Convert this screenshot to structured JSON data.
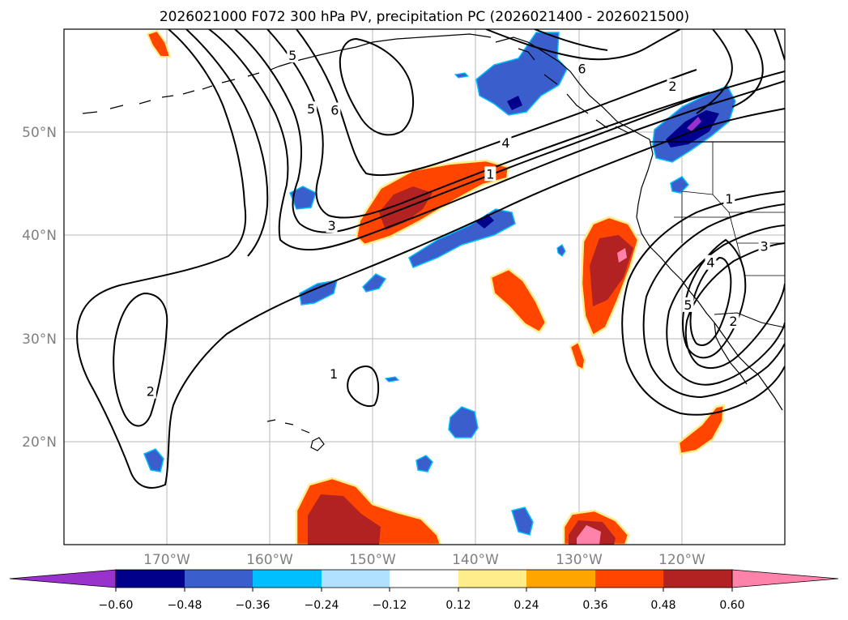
{
  "chart_data": {
    "type": "contour-map",
    "title": "2026021000 F072 300 hPa PV, precipitation PC (2026021400 - 2026021500)",
    "map": {
      "lon_range": [
        -180,
        -110
      ],
      "lat_range": [
        10,
        60
      ],
      "lon_ticks": [
        -170,
        -160,
        -150,
        -140,
        -130,
        -120
      ],
      "lon_tick_labels": [
        "170°W",
        "160°W",
        "150°W",
        "140°W",
        "130°W",
        "120°W"
      ],
      "lat_ticks": [
        20,
        30,
        40,
        50
      ],
      "lat_tick_labels": [
        "20°N",
        "30°N",
        "40°N",
        "50°N"
      ],
      "grid": true
    },
    "colorbar": {
      "ticks": [
        -0.6,
        -0.48,
        -0.36,
        -0.24,
        -0.12,
        0.12,
        0.24,
        0.36,
        0.48,
        0.6
      ],
      "tick_labels": [
        "−0.60",
        "−0.48",
        "−0.36",
        "−0.24",
        "−0.12",
        "0.12",
        "0.24",
        "0.36",
        "0.48",
        "0.60"
      ],
      "colors": [
        "#9932cc",
        "#00008b",
        "#3a5fcd",
        "#00bfff",
        "#b0e2ff",
        "#ffffff",
        "#ffec8b",
        "#ffa500",
        "#ff4500",
        "#b22222",
        "#ff82ab"
      ]
    },
    "contour_labels": [
      {
        "text": "5",
        "lon": -157.8,
        "lat": 57.4
      },
      {
        "text": "6",
        "lon": -129.7,
        "lat": 56.1
      },
      {
        "text": "5",
        "lon": -156.0,
        "lat": 52.2
      },
      {
        "text": "6",
        "lon": -153.7,
        "lat": 52.1
      },
      {
        "text": "2",
        "lon": -120.9,
        "lat": 54.4
      },
      {
        "text": "4",
        "lon": -137.1,
        "lat": 48.9
      },
      {
        "text": "1",
        "lon": -138.6,
        "lat": 45.9
      },
      {
        "text": "3",
        "lon": -154.0,
        "lat": 40.9
      },
      {
        "text": "1",
        "lon": -115.4,
        "lat": 43.5
      },
      {
        "text": "3",
        "lon": -112.0,
        "lat": 38.9
      },
      {
        "text": "4",
        "lon": -117.2,
        "lat": 37.3
      },
      {
        "text": "5",
        "lon": -119.4,
        "lat": 33.2
      },
      {
        "text": "2",
        "lon": -115.0,
        "lat": 31.6
      },
      {
        "text": "1",
        "lon": -153.8,
        "lat": 26.5
      },
      {
        "text": "2",
        "lon": -171.6,
        "lat": 24.8
      }
    ]
  }
}
